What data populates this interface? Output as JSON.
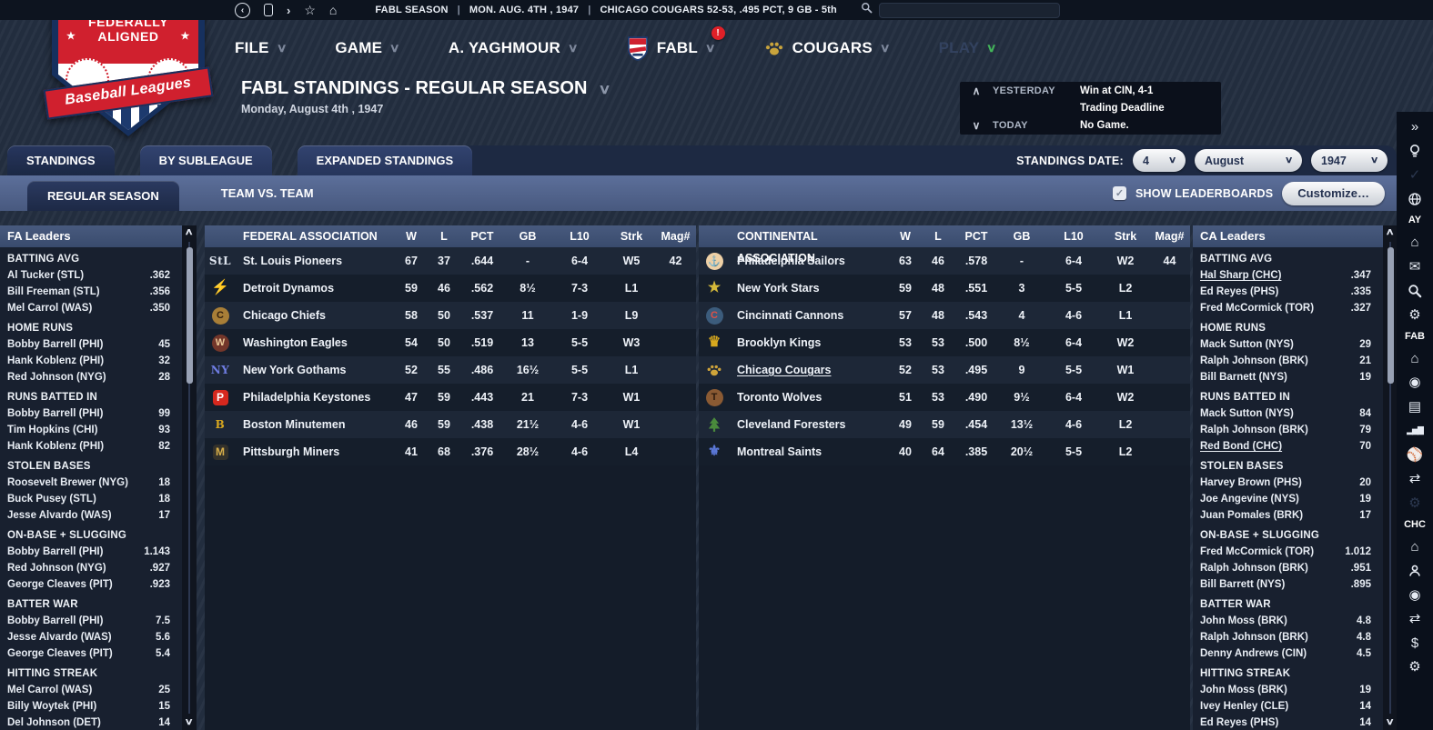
{
  "colors": {
    "header_blue": "#42557a",
    "band_blue": "#53678f",
    "panel_bg": "#18202f",
    "page_bg": "#232e40",
    "accent_red": "#e02028",
    "play_green": "#43b45a",
    "gold": "#c9a43c"
  },
  "glyphs": {
    "chevron_down": "∨",
    "chevron_up": "∧",
    "back": "‹",
    "forward": "›",
    "star": "☆",
    "star_filled": "★",
    "home": "⌂",
    "collapse": "»",
    "check": "✓"
  },
  "topbar": {
    "season": "FABL SEASON",
    "date": "MON. AUG. 4TH , 1947",
    "team_line": "CHICAGO COUGARS  52-53, .495 PCT, 9 GB - 5th",
    "separator": "|",
    "search_value": ""
  },
  "logo": {
    "top1": "FEDERALLY",
    "top2": "ALIGNED",
    "banner": "Baseball Leagues"
  },
  "menubar": {
    "items": [
      {
        "id": "file",
        "label": "FILE"
      },
      {
        "id": "game",
        "label": "GAME"
      },
      {
        "id": "manager",
        "label": "A. YAGHMOUR"
      },
      {
        "id": "fabl",
        "label": "FABL",
        "icon": "fabl-shield-icon",
        "badge": "!"
      },
      {
        "id": "cougars",
        "label": "COUGARS",
        "icon": "paw-icon"
      },
      {
        "id": "play",
        "label": "PLAY",
        "disabled": true,
        "chev_green": true
      }
    ]
  },
  "page": {
    "title": "FABL STANDINGS - REGULAR SEASON",
    "date": "Monday, August 4th , 1947"
  },
  "recap": {
    "yesterday_label": "YESTERDAY",
    "yesterday_result": "Win at CIN, 4-1",
    "yesterday_note": "Trading Deadline",
    "today_label": "TODAY",
    "today_note": "No Game."
  },
  "tabs": [
    {
      "id": "standings",
      "label": "STANDINGS",
      "active": true
    },
    {
      "id": "by-subleague",
      "label": "BY SUBLEAGUE",
      "active": false
    },
    {
      "id": "expanded-standings",
      "label": "EXPANDED STANDINGS",
      "active": false
    }
  ],
  "subtabs": [
    {
      "id": "regular-season",
      "label": "REGULAR SEASON",
      "active": true
    },
    {
      "id": "team-vs-team",
      "label": "TEAM VS. TEAM",
      "active": false
    }
  ],
  "standings_date": {
    "label": "STANDINGS DATE:",
    "day": "4",
    "month": "August",
    "year": "1947"
  },
  "controls": {
    "show_leaderboards_label": "SHOW LEADERBOARDS",
    "checked": true,
    "customize_label": "Customize…"
  },
  "fa_leaders": {
    "title": "FA Leaders",
    "sections": [
      {
        "header": "BATTING AVG",
        "rows": [
          {
            "player": "Al Tucker (STL)",
            "value": ".362"
          },
          {
            "player": "Bill Freeman (STL)",
            "value": ".356"
          },
          {
            "player": "Mel Carrol (WAS)",
            "value": ".350"
          }
        ]
      },
      {
        "header": "HOME RUNS",
        "rows": [
          {
            "player": "Bobby Barrell (PHI)",
            "value": "45"
          },
          {
            "player": "Hank Koblenz (PHI)",
            "value": "32"
          },
          {
            "player": "Red Johnson (NYG)",
            "value": "28"
          }
        ]
      },
      {
        "header": "RUNS BATTED IN",
        "rows": [
          {
            "player": "Bobby Barrell (PHI)",
            "value": "99"
          },
          {
            "player": "Tim Hopkins (CHI)",
            "value": "93"
          },
          {
            "player": "Hank Koblenz (PHI)",
            "value": "82"
          }
        ]
      },
      {
        "header": "STOLEN BASES",
        "rows": [
          {
            "player": "Roosevelt Brewer (NYG)",
            "value": "18"
          },
          {
            "player": "Buck Pusey (STL)",
            "value": "18"
          },
          {
            "player": "Jesse Alvardo (WAS)",
            "value": "17"
          }
        ]
      },
      {
        "header": "ON-BASE + SLUGGING",
        "rows": [
          {
            "player": "Bobby Barrell (PHI)",
            "value": "1.143"
          },
          {
            "player": "Red Johnson (NYG)",
            "value": ".927"
          },
          {
            "player": "George Cleaves (PIT)",
            "value": ".923"
          }
        ]
      },
      {
        "header": "BATTER WAR",
        "rows": [
          {
            "player": "Bobby Barrell (PHI)",
            "value": "7.5"
          },
          {
            "player": "Jesse Alvardo (WAS)",
            "value": "5.6"
          },
          {
            "player": "George Cleaves (PIT)",
            "value": "5.4"
          }
        ]
      },
      {
        "header": "HITTING STREAK",
        "rows": [
          {
            "player": "Mel Carrol (WAS)",
            "value": "25"
          },
          {
            "player": "Billy Woytek (PHI)",
            "value": "15"
          },
          {
            "player": "Del Johnson (DET)",
            "value": "14"
          }
        ]
      }
    ]
  },
  "ca_leaders": {
    "title": "CA Leaders",
    "sections": [
      {
        "header": "BATTING AVG",
        "rows": [
          {
            "player": "Hal Sharp (CHC)",
            "value": ".347",
            "underline": true
          },
          {
            "player": "Ed Reyes (PHS)",
            "value": ".335"
          },
          {
            "player": "Fred McCormick (TOR)",
            "value": ".327"
          }
        ]
      },
      {
        "header": "HOME RUNS",
        "rows": [
          {
            "player": "Mack Sutton (NYS)",
            "value": "29"
          },
          {
            "player": "Ralph Johnson (BRK)",
            "value": "21"
          },
          {
            "player": "Bill Barnett (NYS)",
            "value": "19"
          }
        ]
      },
      {
        "header": "RUNS BATTED IN",
        "rows": [
          {
            "player": "Mack Sutton (NYS)",
            "value": "84"
          },
          {
            "player": "Ralph Johnson (BRK)",
            "value": "79"
          },
          {
            "player": "Red Bond (CHC)",
            "value": "70",
            "underline": true
          }
        ]
      },
      {
        "header": "STOLEN BASES",
        "rows": [
          {
            "player": "Harvey Brown (PHS)",
            "value": "20"
          },
          {
            "player": "Joe Angevine (NYS)",
            "value": "19"
          },
          {
            "player": "Juan Pomales (BRK)",
            "value": "17"
          }
        ]
      },
      {
        "header": "ON-BASE + SLUGGING",
        "rows": [
          {
            "player": "Fred McCormick (TOR)",
            "value": "1.012"
          },
          {
            "player": "Ralph Johnson (BRK)",
            "value": ".951"
          },
          {
            "player": "Bill Barrett (NYS)",
            "value": ".895"
          }
        ]
      },
      {
        "header": "BATTER WAR",
        "rows": [
          {
            "player": "John Moss (BRK)",
            "value": "4.8"
          },
          {
            "player": "Ralph Johnson (BRK)",
            "value": "4.8"
          },
          {
            "player": "Denny Andrews (CIN)",
            "value": "4.5"
          }
        ]
      },
      {
        "header": "HITTING STREAK",
        "rows": [
          {
            "player": "John Moss (BRK)",
            "value": "19"
          },
          {
            "player": "Ivey Henley (CLE)",
            "value": "14"
          },
          {
            "player": "Ed Reyes (PHS)",
            "value": "14"
          }
        ]
      }
    ]
  },
  "federal": {
    "title": "FEDERAL ASSOCIATION",
    "columns": [
      "W",
      "L",
      "PCT",
      "GB",
      "L10",
      "Strk",
      "Mag#"
    ],
    "teams": [
      {
        "name": "St. Louis Pioneers",
        "icon": "stl-monogram-icon",
        "w": "67",
        "l": "37",
        "pct": ".644",
        "gb": "-",
        "l10": "6-4",
        "strk": "W5",
        "mag": "42"
      },
      {
        "name": "Detroit Dynamos",
        "icon": "lightning-bolt-icon",
        "w": "59",
        "l": "46",
        "pct": ".562",
        "gb": "8½",
        "l10": "7-3",
        "strk": "L1",
        "mag": ""
      },
      {
        "name": "Chicago Chiefs",
        "icon": "chief-head-icon",
        "w": "58",
        "l": "50",
        "pct": ".537",
        "gb": "11",
        "l10": "1-9",
        "strk": "L9",
        "mag": ""
      },
      {
        "name": "Washington Eagles",
        "icon": "eagle-icon",
        "w": "54",
        "l": "50",
        "pct": ".519",
        "gb": "13",
        "l10": "5-5",
        "strk": "W3",
        "mag": ""
      },
      {
        "name": "New York Gothams",
        "icon": "ny-monogram-icon",
        "w": "52",
        "l": "55",
        "pct": ".486",
        "gb": "16½",
        "l10": "5-5",
        "strk": "L1",
        "mag": ""
      },
      {
        "name": "Philadelphia Keystones",
        "icon": "keystone-icon",
        "w": "47",
        "l": "59",
        "pct": ".443",
        "gb": "21",
        "l10": "7-3",
        "strk": "W1",
        "mag": ""
      },
      {
        "name": "Boston Minutemen",
        "icon": "b-monogram-icon",
        "w": "46",
        "l": "59",
        "pct": ".438",
        "gb": "21½",
        "l10": "4-6",
        "strk": "W1",
        "mag": ""
      },
      {
        "name": "Pittsburgh Miners",
        "icon": "miner-keystone-icon",
        "w": "41",
        "l": "68",
        "pct": ".376",
        "gb": "28½",
        "l10": "4-6",
        "strk": "L4",
        "mag": ""
      }
    ]
  },
  "continental": {
    "title": "CONTINENTAL ASSOCIATION",
    "columns": [
      "W",
      "L",
      "PCT",
      "GB",
      "L10",
      "Strk",
      "Mag#"
    ],
    "teams": [
      {
        "name": "Philadelphia Sailors",
        "icon": "anchor-icon",
        "w": "63",
        "l": "46",
        "pct": ".578",
        "gb": "-",
        "l10": "6-4",
        "strk": "W2",
        "mag": "44"
      },
      {
        "name": "New York Stars",
        "icon": "gold-star-icon",
        "w": "59",
        "l": "48",
        "pct": ".551",
        "gb": "3",
        "l10": "5-5",
        "strk": "L2",
        "mag": ""
      },
      {
        "name": "Cincinnati Cannons",
        "icon": "cannon-icon",
        "w": "57",
        "l": "48",
        "pct": ".543",
        "gb": "4",
        "l10": "4-6",
        "strk": "L1",
        "mag": ""
      },
      {
        "name": "Brooklyn Kings",
        "icon": "crown-icon",
        "w": "53",
        "l": "53",
        "pct": ".500",
        "gb": "8½",
        "l10": "6-4",
        "strk": "W2",
        "mag": ""
      },
      {
        "name": "Chicago Cougars",
        "icon": "paw-icon",
        "w": "52",
        "l": "53",
        "pct": ".495",
        "gb": "9",
        "l10": "5-5",
        "strk": "W1",
        "mag": "",
        "underline": true
      },
      {
        "name": "Toronto Wolves",
        "icon": "wolf-icon",
        "w": "51",
        "l": "53",
        "pct": ".490",
        "gb": "9½",
        "l10": "6-4",
        "strk": "W2",
        "mag": ""
      },
      {
        "name": "Cleveland Foresters",
        "icon": "pine-tree-icon",
        "w": "49",
        "l": "59",
        "pct": ".454",
        "gb": "13½",
        "l10": "4-6",
        "strk": "L2",
        "mag": ""
      },
      {
        "name": "Montreal Saints",
        "icon": "fleur-de-lis-icon",
        "w": "40",
        "l": "64",
        "pct": ".385",
        "gb": "20½",
        "l10": "5-5",
        "strk": "L2",
        "mag": ""
      }
    ]
  },
  "rail": {
    "items": [
      {
        "kind": "icon",
        "name": "collapse-icon"
      },
      {
        "kind": "icon",
        "name": "bulb-icon"
      },
      {
        "kind": "icon",
        "name": "check-icon",
        "dim": true
      },
      {
        "kind": "icon",
        "name": "globe-icon"
      },
      {
        "kind": "label",
        "text": "AY"
      },
      {
        "kind": "icon",
        "name": "home-icon"
      },
      {
        "kind": "icon",
        "name": "mail-icon"
      },
      {
        "kind": "icon",
        "name": "search-icon"
      },
      {
        "kind": "icon",
        "name": "gear-icon"
      },
      {
        "kind": "label",
        "text": "FAB"
      },
      {
        "kind": "icon",
        "name": "home-icon"
      },
      {
        "kind": "icon",
        "name": "scouting-target-icon"
      },
      {
        "kind": "icon",
        "name": "news-card-icon"
      },
      {
        "kind": "icon",
        "name": "stats-chart-icon"
      },
      {
        "kind": "icon",
        "name": "baseball-icon"
      },
      {
        "kind": "icon",
        "name": "trade-icon"
      },
      {
        "kind": "icon",
        "name": "gear-icon",
        "dim": true
      },
      {
        "kind": "label",
        "text": "CHC"
      },
      {
        "kind": "icon",
        "name": "home-icon"
      },
      {
        "kind": "icon",
        "name": "front-office-icon"
      },
      {
        "kind": "icon",
        "name": "scouting-target-icon"
      },
      {
        "kind": "icon",
        "name": "trade-icon"
      },
      {
        "kind": "icon",
        "name": "finance-dollar-icon"
      },
      {
        "kind": "icon",
        "name": "gear-icon"
      }
    ]
  }
}
